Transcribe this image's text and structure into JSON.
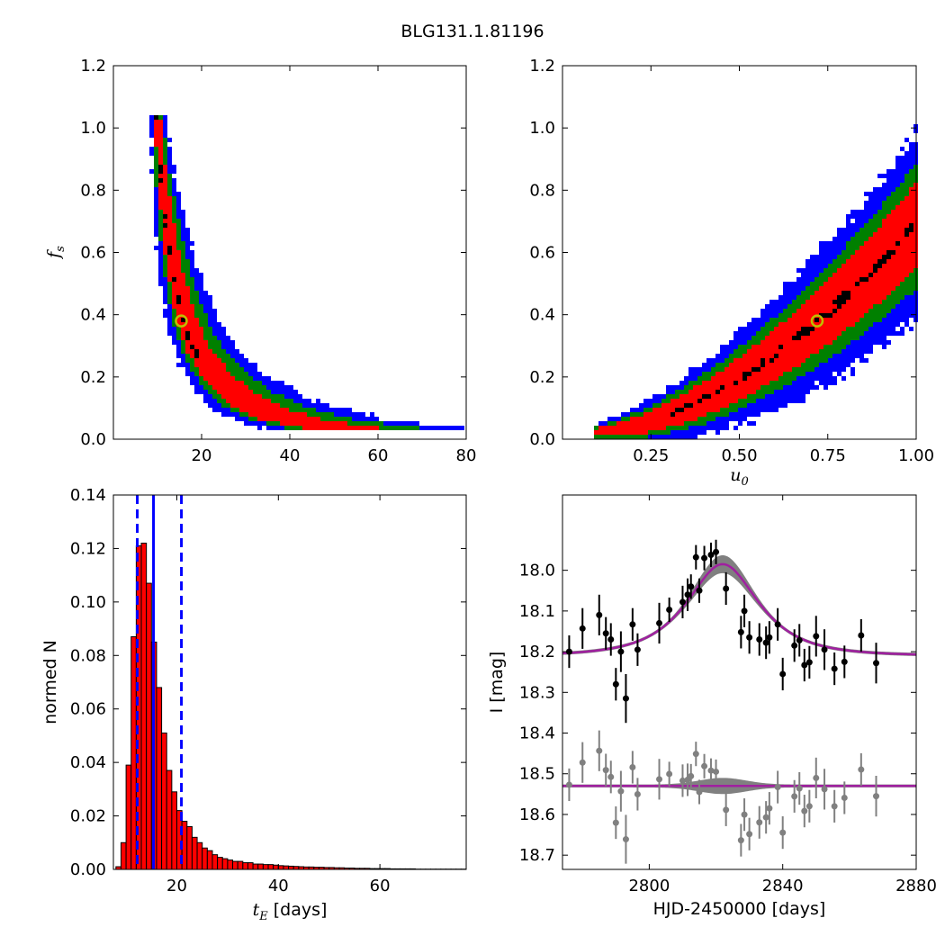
{
  "figure_title": "BLG131.1.81196",
  "colors": {
    "blue": "#0000ff",
    "green": "#008000",
    "red": "#ff0000",
    "black": "#000000",
    "marker_yellow": "#bfbf00",
    "model_band": "#808080",
    "model_line": "#a020a0",
    "residual_points": "#808080"
  },
  "chart_data": [
    {
      "id": "tE_fs",
      "type": "heatmap",
      "xlabel": "",
      "ylabel_base": "f",
      "ylabel_sub": "s",
      "xlim": [
        0,
        80
      ],
      "ylim": [
        0.0,
        1.2
      ],
      "xticks": [
        20,
        40,
        60,
        80
      ],
      "yticks": [
        0.0,
        0.2,
        0.4,
        0.6,
        0.8,
        1.0,
        1.2
      ],
      "ytick_labels": [
        "0.0",
        "0.2",
        "0.4",
        "0.6",
        "0.8",
        "1.0",
        "1.2"
      ],
      "levels": [
        "blue",
        "green",
        "red",
        "black"
      ],
      "best_fit": {
        "x": 15.4,
        "y": 0.38
      },
      "ridge": [
        {
          "y": 1.05,
          "x": 9.3,
          "left": 1.0,
          "right": 1.2
        },
        {
          "y": 0.95,
          "x": 9.8,
          "left": 1.0,
          "right": 1.6
        },
        {
          "y": 0.85,
          "x": 10.3,
          "left": 1.2,
          "right": 2.0
        },
        {
          "y": 0.75,
          "x": 11.0,
          "left": 1.4,
          "right": 2.6
        },
        {
          "y": 0.65,
          "x": 11.8,
          "left": 1.6,
          "right": 3.2
        },
        {
          "y": 0.55,
          "x": 12.8,
          "left": 1.8,
          "right": 3.9
        },
        {
          "y": 0.45,
          "x": 14.2,
          "left": 2.0,
          "right": 4.8
        },
        {
          "y": 0.38,
          "x": 15.4,
          "left": 2.2,
          "right": 5.4
        },
        {
          "y": 0.3,
          "x": 17.5,
          "left": 2.6,
          "right": 6.5
        },
        {
          "y": 0.22,
          "x": 21.0,
          "left": 3.2,
          "right": 8.0
        },
        {
          "y": 0.16,
          "x": 25.0,
          "left": 4.0,
          "right": 10.0
        },
        {
          "y": 0.11,
          "x": 30.0,
          "left": 5.0,
          "right": 12.5
        },
        {
          "y": 0.07,
          "x": 37.0,
          "left": 6.5,
          "right": 16.0
        },
        {
          "y": 0.045,
          "x": 46.0,
          "left": 8.0,
          "right": 20.0
        },
        {
          "y": 0.03,
          "x": 58.0,
          "left": 10.0,
          "right": 22.0
        }
      ]
    },
    {
      "id": "u0_fs",
      "type": "heatmap",
      "xlabel_base": "u",
      "xlabel_sub": "0",
      "ylabel": "",
      "xlim": [
        0.0,
        1.0
      ],
      "ylim": [
        0.0,
        1.2
      ],
      "xticks": [
        0.25,
        0.5,
        0.75,
        1.0
      ],
      "xtick_labels": [
        "0.25",
        "0.50",
        "0.75",
        "1.00"
      ],
      "yticks": [
        0.0,
        0.2,
        0.4,
        0.6,
        0.8,
        1.0,
        1.2
      ],
      "ytick_labels": [
        "0.0",
        "0.2",
        "0.4",
        "0.6",
        "0.8",
        "1.0",
        "1.2"
      ],
      "levels": [
        "blue",
        "green",
        "red",
        "black"
      ],
      "best_fit": {
        "x": 0.72,
        "y": 0.38
      },
      "ridge_x_range": [
        0.08,
        1.0
      ],
      "ridge_fn": "fs = 0.03 + 0.67*((u0-0.08)/0.92)^1.7"
    },
    {
      "id": "tE_hist",
      "type": "bar",
      "xlabel_base": "t",
      "xlabel_sub": "E",
      "xlabel_unit": " [days]",
      "ylabel": "normed N",
      "xlim": [
        7.5,
        77
      ],
      "ylim": [
        0.0,
        0.14
      ],
      "xticks": [
        20,
        40,
        60
      ],
      "yticks": [
        0.0,
        0.02,
        0.04,
        0.06,
        0.08,
        0.1,
        0.12,
        0.14
      ],
      "ytick_labels": [
        "0.00",
        "0.02",
        "0.04",
        "0.06",
        "0.08",
        "0.10",
        "0.12",
        "0.14"
      ],
      "bin_start": 8,
      "bin_width": 1,
      "values": [
        0.001,
        0.01,
        0.039,
        0.087,
        0.121,
        0.122,
        0.107,
        0.085,
        0.068,
        0.051,
        0.037,
        0.029,
        0.022,
        0.018,
        0.016,
        0.012,
        0.01,
        0.008,
        0.007,
        0.0055,
        0.0045,
        0.004,
        0.0035,
        0.003,
        0.003,
        0.0025,
        0.0025,
        0.002,
        0.002,
        0.0018,
        0.0018,
        0.0016,
        0.0014,
        0.0013,
        0.0012,
        0.0011,
        0.001,
        0.0009,
        0.0009,
        0.0008,
        0.0008,
        0.0007,
        0.0007,
        0.0006,
        0.0006,
        0.0005,
        0.0005,
        0.0004,
        0.0004,
        0.0004,
        0.0003,
        0.0003,
        0.0003,
        0.0003,
        0.0002,
        0.0002,
        0.0002,
        0.0002,
        0.0002,
        0.0001,
        0.0001,
        0.0001,
        0.0001,
        0.0001,
        0.0001,
        0.0001,
        0.0001,
        0.0001,
        0.0001
      ],
      "median": 15.4,
      "interval": [
        12.2,
        20.9
      ]
    },
    {
      "id": "lightcurve",
      "type": "scatter",
      "xlabel": "HJD-2450000 [days]",
      "ylabel": "I [mag]",
      "xlim": [
        2774,
        2880
      ],
      "ylim": [
        18.735,
        17.815
      ],
      "y_inverted": true,
      "xticks": [
        2800,
        2840,
        2880
      ],
      "yticks": [
        18.0,
        18.1,
        18.2,
        18.3,
        18.4,
        18.5,
        18.6,
        18.7
      ],
      "ytick_labels": [
        "18.0",
        "18.1",
        "18.2",
        "18.3",
        "18.4",
        "18.5",
        "18.6",
        "18.7"
      ],
      "model": {
        "baseline": 18.21,
        "peak_mag": 17.985,
        "t0": 2822,
        "tE": 15.4,
        "u0": 0.72
      },
      "residual_offset": 18.53,
      "points": [
        {
          "x": 2776.0,
          "y": 18.2,
          "err": 0.04
        },
        {
          "x": 2780.0,
          "y": 18.143,
          "err": 0.05
        },
        {
          "x": 2785.0,
          "y": 18.11,
          "err": 0.05
        },
        {
          "x": 2787.0,
          "y": 18.155,
          "err": 0.04
        },
        {
          "x": 2788.5,
          "y": 18.17,
          "err": 0.04
        },
        {
          "x": 2790.0,
          "y": 18.28,
          "err": 0.04
        },
        {
          "x": 2791.5,
          "y": 18.2,
          "err": 0.05
        },
        {
          "x": 2793.0,
          "y": 18.315,
          "err": 0.06
        },
        {
          "x": 2795.0,
          "y": 18.133,
          "err": 0.04
        },
        {
          "x": 2796.5,
          "y": 18.195,
          "err": 0.04
        },
        {
          "x": 2803.0,
          "y": 18.13,
          "err": 0.05
        },
        {
          "x": 2806.0,
          "y": 18.097,
          "err": 0.03
        },
        {
          "x": 2810.0,
          "y": 18.078,
          "err": 0.04
        },
        {
          "x": 2811.5,
          "y": 18.06,
          "err": 0.04
        },
        {
          "x": 2812.5,
          "y": 18.04,
          "err": 0.03
        },
        {
          "x": 2814.0,
          "y": 17.968,
          "err": 0.03
        },
        {
          "x": 2815.0,
          "y": 18.05,
          "err": 0.03
        },
        {
          "x": 2816.5,
          "y": 17.97,
          "err": 0.03
        },
        {
          "x": 2818.5,
          "y": 17.962,
          "err": 0.03
        },
        {
          "x": 2820.0,
          "y": 17.955,
          "err": 0.03
        },
        {
          "x": 2823.0,
          "y": 18.045,
          "err": 0.04
        },
        {
          "x": 2827.5,
          "y": 18.152,
          "err": 0.04
        },
        {
          "x": 2828.5,
          "y": 18.1,
          "err": 0.04
        },
        {
          "x": 2830.0,
          "y": 18.165,
          "err": 0.04
        },
        {
          "x": 2833.0,
          "y": 18.17,
          "err": 0.04
        },
        {
          "x": 2835.0,
          "y": 18.178,
          "err": 0.04
        },
        {
          "x": 2836.0,
          "y": 18.165,
          "err": 0.04
        },
        {
          "x": 2838.5,
          "y": 18.133,
          "err": 0.04
        },
        {
          "x": 2840.0,
          "y": 18.255,
          "err": 0.04
        },
        {
          "x": 2843.5,
          "y": 18.185,
          "err": 0.04
        },
        {
          "x": 2845.0,
          "y": 18.172,
          "err": 0.04
        },
        {
          "x": 2846.5,
          "y": 18.233,
          "err": 0.04
        },
        {
          "x": 2848.0,
          "y": 18.226,
          "err": 0.04
        },
        {
          "x": 2850.0,
          "y": 18.162,
          "err": 0.05
        },
        {
          "x": 2852.5,
          "y": 18.195,
          "err": 0.05
        },
        {
          "x": 2855.5,
          "y": 18.242,
          "err": 0.04
        },
        {
          "x": 2858.5,
          "y": 18.225,
          "err": 0.04
        },
        {
          "x": 2863.5,
          "y": 18.16,
          "err": 0.04
        },
        {
          "x": 2868.0,
          "y": 18.228,
          "err": 0.05
        }
      ]
    }
  ]
}
